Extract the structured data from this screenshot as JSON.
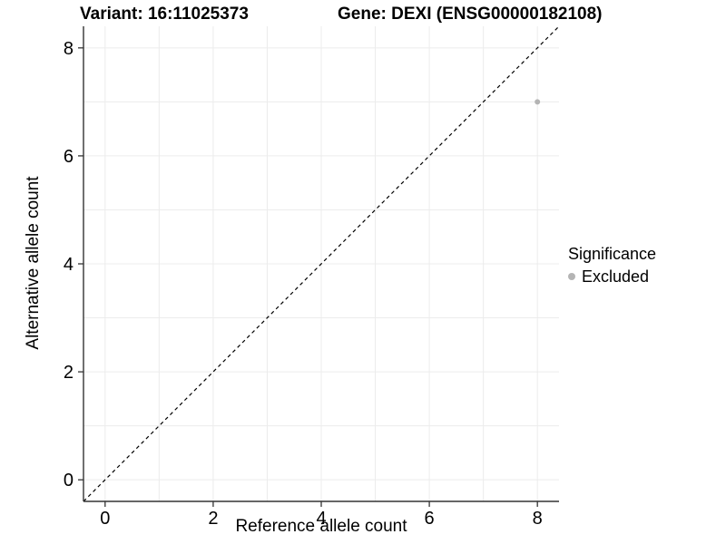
{
  "chart_data": {
    "type": "scatter",
    "titles": {
      "left": "Variant: 16:11025373",
      "right": "Gene: DEXI (ENSG00000182108)"
    },
    "xlabel": "Reference allele count",
    "ylabel": "Alternative allele count",
    "xlim": [
      -0.4,
      8.4
    ],
    "ylim": [
      -0.4,
      8.4
    ],
    "xticks": [
      0,
      2,
      4,
      6,
      8
    ],
    "yticks": [
      0,
      2,
      4,
      6,
      8
    ],
    "grid": {
      "x": [
        0,
        1,
        2,
        3,
        4,
        5,
        6,
        7,
        8
      ],
      "y": [
        0,
        1,
        2,
        3,
        4,
        5,
        6,
        7,
        8
      ]
    },
    "points": [
      {
        "x": 8,
        "y": 7,
        "series": "Excluded"
      }
    ],
    "identity_line": {
      "slope": 1,
      "intercept": 0,
      "style": "dashed"
    },
    "legend": {
      "title": "Significance",
      "position": "right",
      "entries": [
        {
          "label": "Excluded",
          "color": "#b4b4b4"
        }
      ]
    },
    "colors": {
      "point": "#b4b4b4",
      "grid": "#ececec",
      "axis": "#333333",
      "identity_line": "#000000",
      "background": "#ffffff",
      "text": "#000000"
    }
  }
}
